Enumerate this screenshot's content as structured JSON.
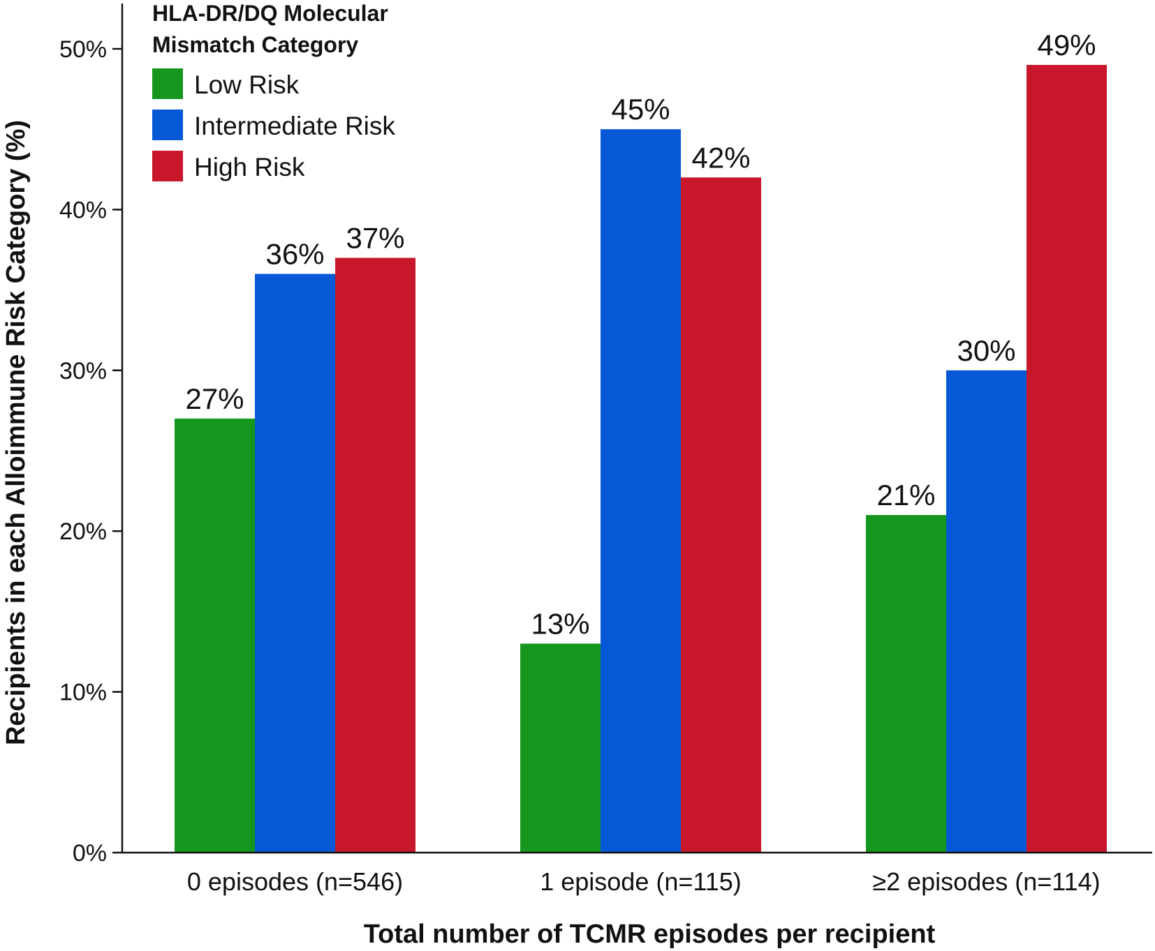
{
  "chart_data": {
    "type": "bar",
    "categories": [
      "0 episodes (n=546)",
      "1 episode (n=115)",
      "≥2 episodes (n=114)"
    ],
    "series": [
      {
        "name": "Low Risk",
        "color": "#15961e",
        "values": [
          27,
          13,
          21
        ],
        "labels": [
          "27%",
          "13%",
          "21%"
        ]
      },
      {
        "name": "Intermediate Risk",
        "color": "#0758d6",
        "values": [
          36,
          45,
          30
        ],
        "labels": [
          "36%",
          "45%",
          "30%"
        ]
      },
      {
        "name": "High Risk",
        "color": "#c8172b",
        "values": [
          37,
          42,
          49
        ],
        "labels": [
          "37%",
          "42%",
          "49%"
        ]
      }
    ],
    "legend": {
      "title_line1": "HLA-DR/DQ Molecular",
      "title_line2": "Mismatch Category",
      "placement": "top-left"
    },
    "ylim": [
      0,
      50
    ],
    "yticks": [
      0,
      10,
      20,
      30,
      40,
      50
    ],
    "ytick_labels": [
      "0%",
      "10%",
      "20%",
      "30%",
      "40%",
      "50%"
    ],
    "ylabel": "Recipients in each Alloimmune Risk Category (%)",
    "xlabel": "Total number of TCMR episodes per recipient",
    "grid": false
  }
}
